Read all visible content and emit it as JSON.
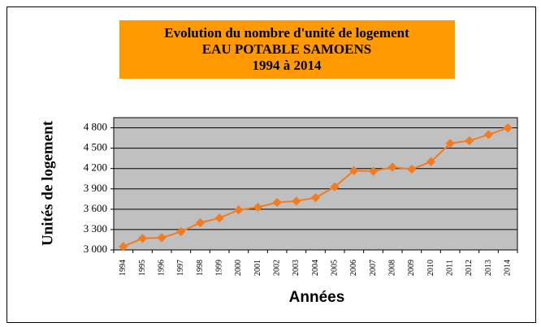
{
  "chart_data": {
    "type": "line",
    "title": [
      "Evolution du nombre d'unité de logement",
      "EAU POTABLE  SAMOENS",
      "1994 à 2014"
    ],
    "x_label": "Années",
    "y_label": "Unités de logement",
    "categories": [
      "1994",
      "1995",
      "1996",
      "1997",
      "1998",
      "1999",
      "2000",
      "2001",
      "2002",
      "2003",
      "2004",
      "2005",
      "2006",
      "2007",
      "2008",
      "2009",
      "2010",
      "2011",
      "2012",
      "2013",
      "2014"
    ],
    "values": [
      3050,
      3170,
      3180,
      3270,
      3400,
      3470,
      3590,
      3630,
      3700,
      3720,
      3770,
      3930,
      4170,
      4160,
      4220,
      4190,
      4300,
      4570,
      4610,
      4700,
      4800
    ],
    "color": "#f47c20",
    "ylim": [
      3000,
      4950
    ],
    "yticks": [
      {
        "value": 3000,
        "label": "3 000"
      },
      {
        "value": 3300,
        "label": "3 300"
      },
      {
        "value": 3600,
        "label": "3 600"
      },
      {
        "value": 3900,
        "label": "3 900"
      },
      {
        "value": 4200,
        "label": "4 200"
      },
      {
        "value": 4500,
        "label": "4 500"
      },
      {
        "value": 4800,
        "label": "4 800"
      }
    ],
    "grid": true
  }
}
